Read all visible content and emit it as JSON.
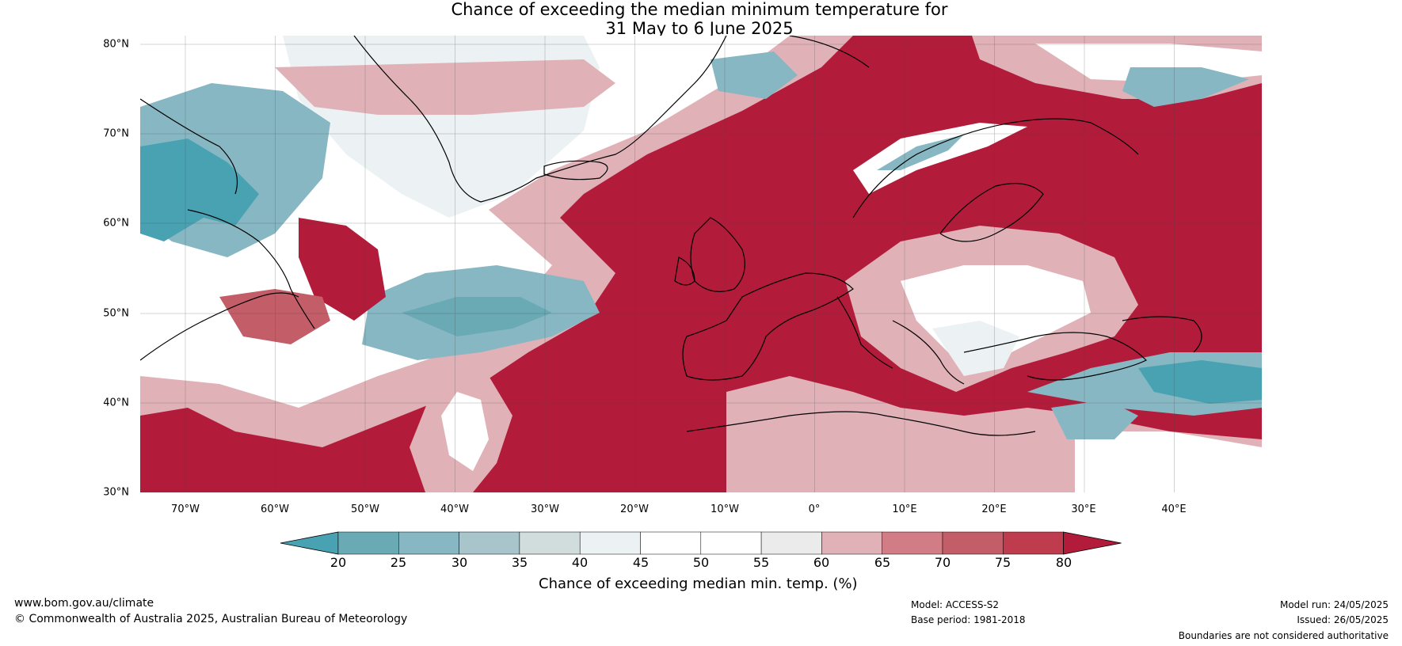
{
  "title_line1": "Chance of exceeding the median minimum temperature for",
  "title_line2": "31 May to 6 June 2025",
  "lat_labels": [
    "80°N",
    "70°N",
    "60°N",
    "50°N",
    "40°N",
    "30°N"
  ],
  "lon_labels": [
    "70°W",
    "60°W",
    "50°W",
    "40°W",
    "30°W",
    "20°W",
    "10°W",
    "0°",
    "10°E",
    "20°E",
    "30°E",
    "40°E"
  ],
  "colorbar": {
    "ticks": [
      "20",
      "25",
      "30",
      "35",
      "40",
      "45",
      "50",
      "55",
      "60",
      "65",
      "70",
      "75",
      "80"
    ],
    "colors": [
      "#48a2b2",
      "#6aaab5",
      "#87b7c2",
      "#a9c5cc",
      "#d1dcdc",
      "#ecf2f3",
      "#ffffff",
      "#ffffff",
      "#ecebec",
      "#e0b2b8",
      "#d27c86",
      "#c35d68",
      "#bf3c4e",
      "#b21c3a"
    ],
    "label": "Chance of exceeding median min. temp. (%)"
  },
  "map_colors": {
    "very_high": "#b21c3a",
    "high": "#c35d68",
    "mid_high": "#e0b2b8",
    "neutral": "#ffffff",
    "light_low": "#ecf2f3",
    "low": "#87b7c2",
    "very_low": "#48a2b2"
  },
  "footer": {
    "website": "www.bom.gov.au/climate",
    "copyright": "© Commonwealth of Australia 2025, Australian Bureau of Meteorology",
    "model": "Model: ACCESS-S2",
    "base_period": "Base period: 1981-2018",
    "model_run": "Model run: 24/05/2025",
    "issued": "Issued: 26/05/2025",
    "disclaimer": "Boundaries are not considered authoritative"
  }
}
